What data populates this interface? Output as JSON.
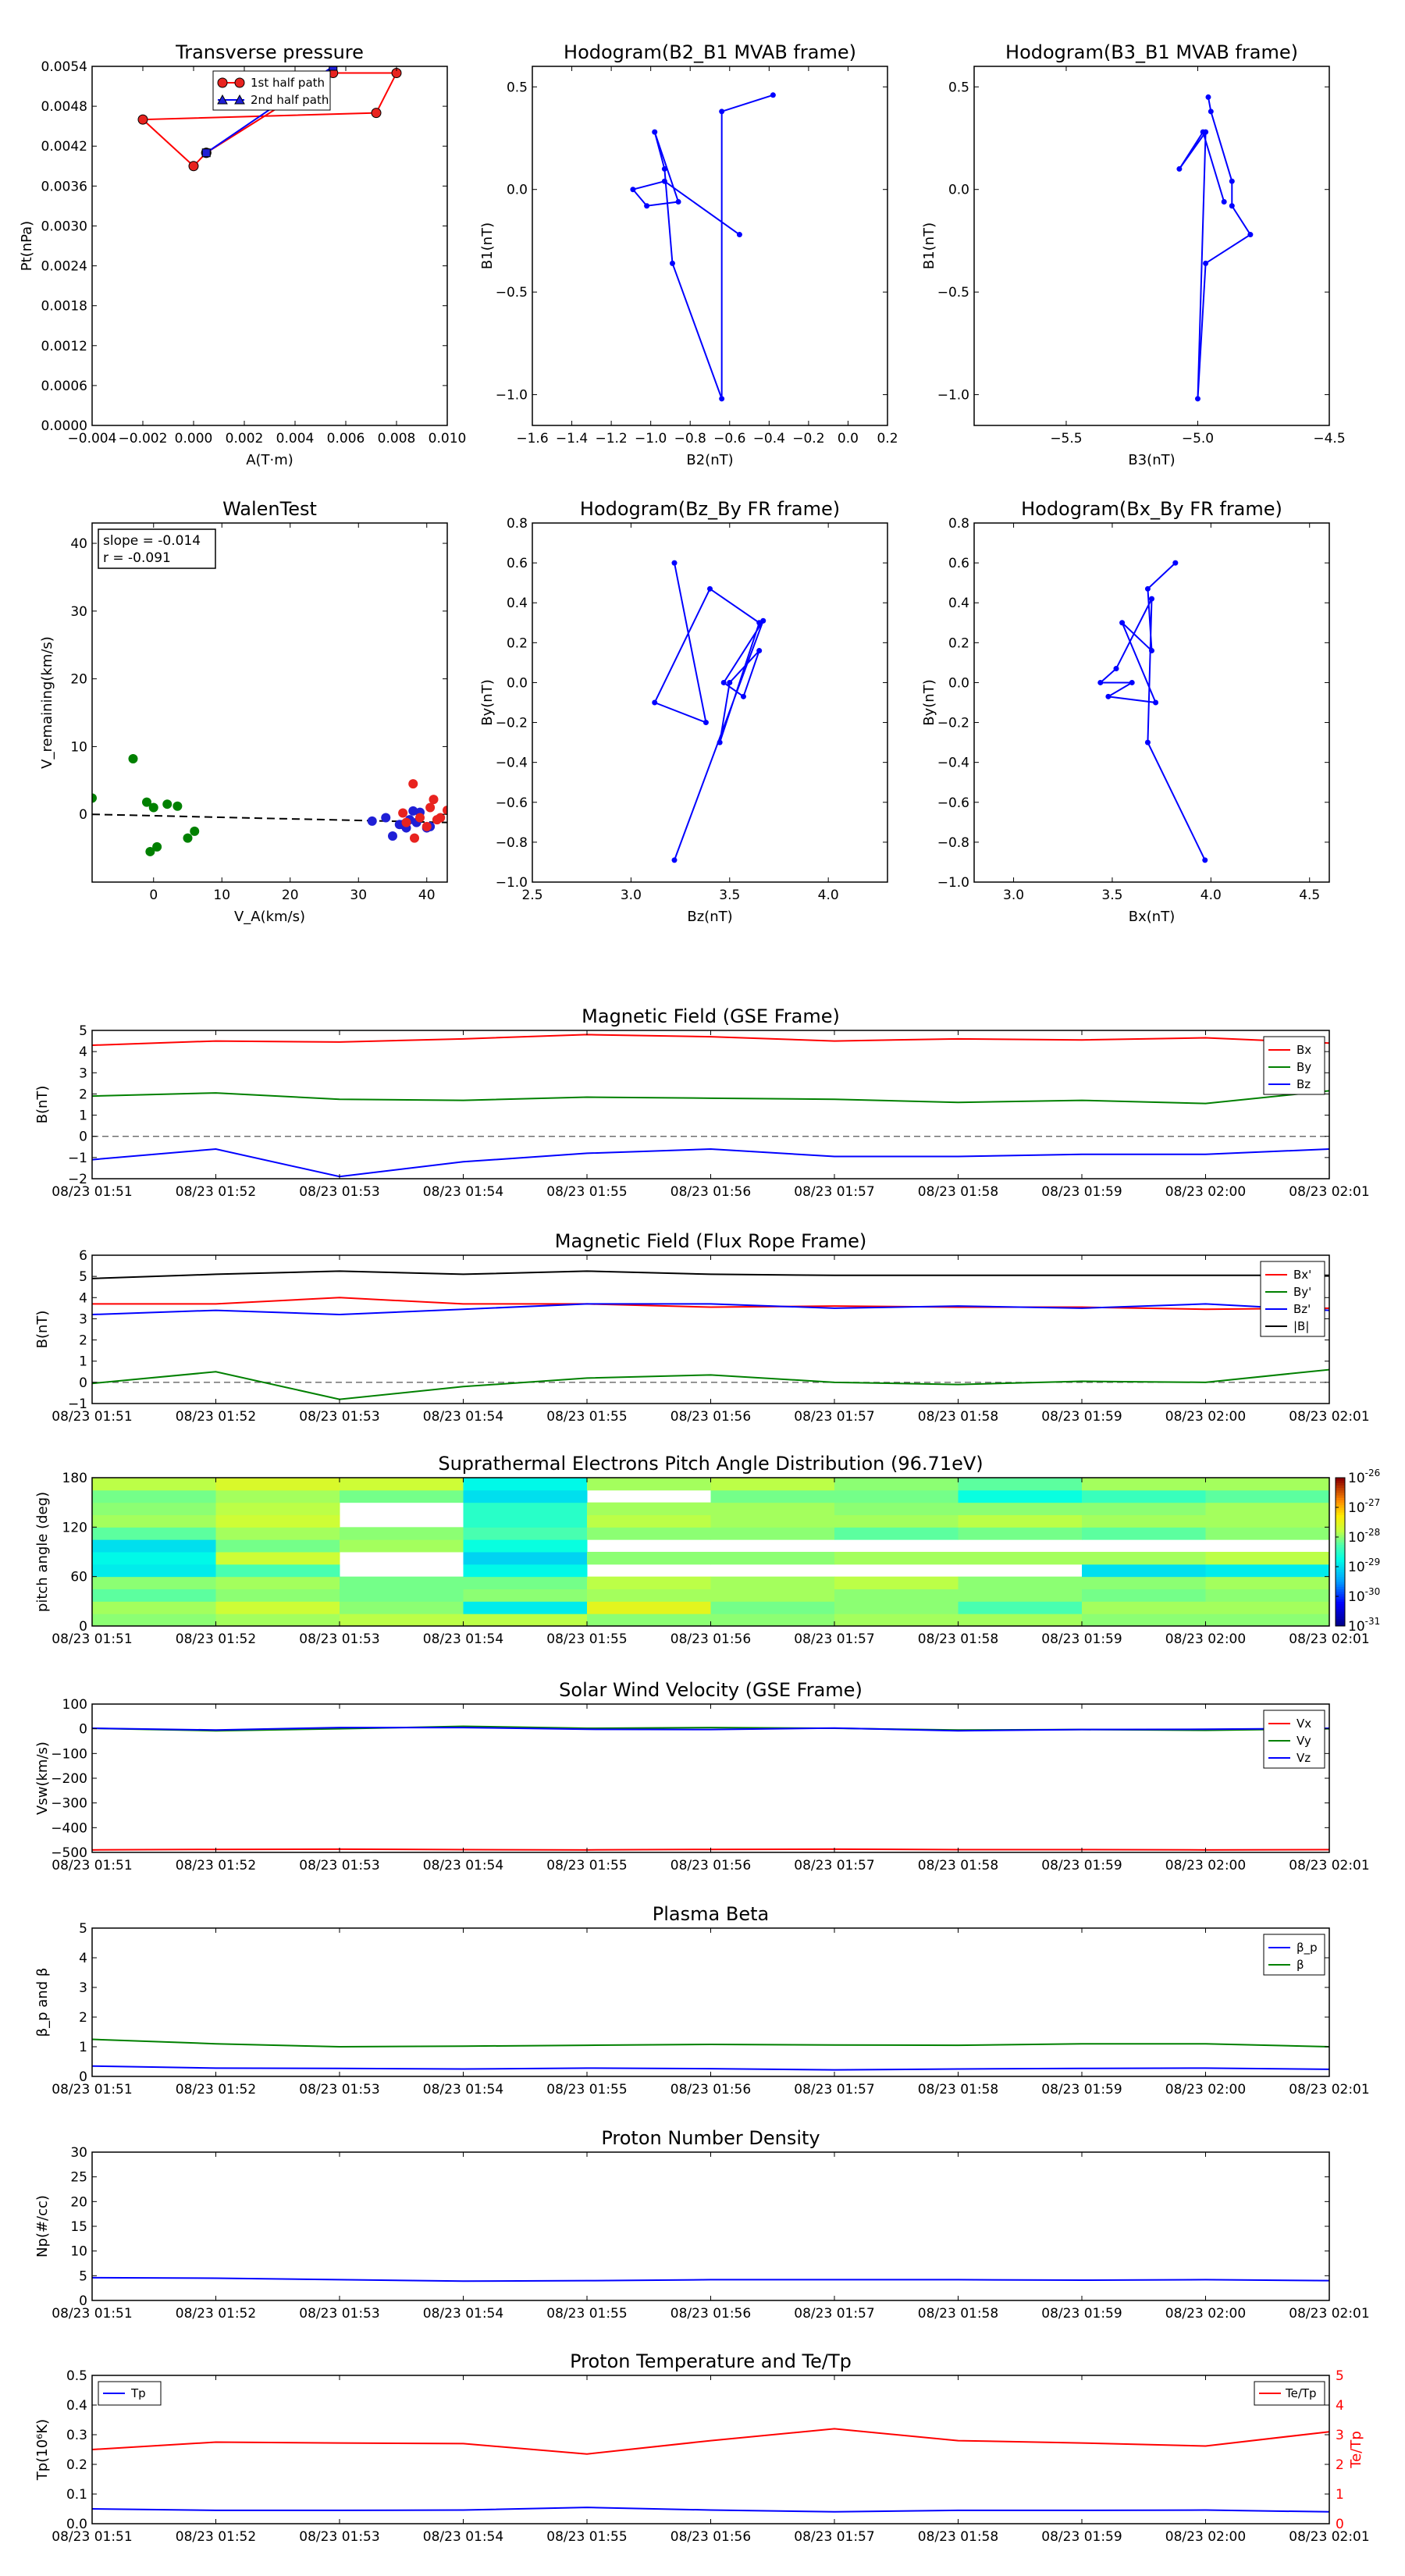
{
  "colors": {
    "red": "#ff0000",
    "green": "#008000",
    "blue": "#0000ff",
    "black": "#000000",
    "marker_red": "#e8231f",
    "marker_blue": "#1f1fd6"
  },
  "time_ticks": [
    "08/23 01:51",
    "08/23 01:52",
    "08/23 01:53",
    "08/23 01:54",
    "08/23 01:55",
    "08/23 01:56",
    "08/23 01:57",
    "08/23 01:58",
    "08/23 01:59",
    "08/23 02:00",
    "08/23 02:01"
  ],
  "chart_data": [
    {
      "type": "line",
      "title": "Transverse pressure",
      "xlabel": "A(T·m)",
      "ylabel": "Pt(nPa)",
      "xlim": [
        -0.004,
        0.01
      ],
      "ylim": [
        0,
        0.0054
      ],
      "xticks": [
        "−0.004",
        "−0.002",
        "0.000",
        "0.002",
        "0.004",
        "0.006",
        "0.008",
        "0.010"
      ],
      "yticks": [
        "0.0000",
        "0.0006",
        "0.0012",
        "0.0018",
        "0.0024",
        "0.0030",
        "0.0036",
        "0.0042",
        "0.0048",
        "0.0054"
      ],
      "legend": [
        "1st half path",
        "2nd half path"
      ],
      "series": [
        {
          "name": "1st half path",
          "x": [
            0.0005,
            0.0,
            -0.002,
            0.0072,
            0.008,
            0.0055,
            0.0005
          ],
          "y": [
            0.0041,
            0.0039,
            0.0046,
            0.0047,
            0.0053,
            0.0053,
            0.0041
          ]
        },
        {
          "name": "2nd half path",
          "x": [
            0.0005,
            0.0055
          ],
          "y": [
            0.0041,
            0.0054
          ]
        }
      ]
    },
    {
      "type": "line",
      "title": "Hodogram(B2_B1 MVAB frame)",
      "xlabel": "B2(nT)",
      "ylabel": "B1(nT)",
      "xlim": [
        -1.6,
        0.2
      ],
      "ylim": [
        -1.15,
        0.6
      ],
      "xticks": [
        "−1.6",
        "−1.4",
        "−1.2",
        "−1.0",
        "−0.8",
        "−0.6",
        "−0.4",
        "−0.2",
        "0.0",
        "0.2"
      ],
      "yticks": [
        "−1.0",
        "−0.5",
        "0.0",
        "0.5"
      ],
      "x": [
        -0.38,
        -0.64,
        -0.64,
        -0.89,
        -0.93,
        -0.98,
        -0.86,
        -1.02,
        -1.09,
        -0.93,
        -0.55
      ],
      "y": [
        0.46,
        0.38,
        -1.02,
        -0.36,
        0.1,
        0.28,
        -0.06,
        -0.08,
        0.0,
        0.04,
        -0.22
      ]
    },
    {
      "type": "line",
      "title": "Hodogram(B3_B1 MVAB frame)",
      "xlabel": "B3(nT)",
      "ylabel": "B1(nT)",
      "xlim": [
        -5.85,
        -4.5
      ],
      "ylim": [
        -1.15,
        0.6
      ],
      "xticks": [
        "−5.5",
        "−5.0",
        "−4.5"
      ],
      "yticks": [
        "−1.0",
        "−0.5",
        "0.0",
        "0.5"
      ],
      "x": [
        -4.96,
        -4.95,
        -4.87,
        -4.87,
        -4.8,
        -4.97,
        -5.0,
        -4.97,
        -5.07,
        -4.98,
        -4.9
      ],
      "y": [
        0.45,
        0.38,
        0.04,
        -0.08,
        -0.22,
        -0.36,
        -1.02,
        0.28,
        0.1,
        0.28,
        -0.06
      ]
    },
    {
      "type": "scatter",
      "title": "WalenTest",
      "xlabel": "V_A(km/s)",
      "ylabel": "V_remaining(km/s)",
      "xlim": [
        -9,
        43
      ],
      "ylim": [
        -10,
        43
      ],
      "xticks": [
        "0",
        "10",
        "20",
        "30",
        "40"
      ],
      "yticks": [
        "0",
        "10",
        "20",
        "30",
        "40"
      ],
      "annotation": [
        "slope = -0.014",
        "r = -0.091"
      ],
      "fit": {
        "x": [
          -9,
          43
        ],
        "y": [
          0.0,
          -1.2
        ]
      },
      "series": [
        {
          "name": "green",
          "x": [
            -9,
            -3,
            -1,
            0,
            2,
            3.5,
            5,
            6,
            -0.5,
            0.5
          ],
          "y": [
            2.4,
            8.2,
            1.8,
            1.0,
            1.5,
            1.2,
            -3.5,
            -2.5,
            -5.5,
            -4.8
          ]
        },
        {
          "name": "blue",
          "x": [
            32,
            34,
            35,
            36,
            37,
            37.5,
            38,
            38.5,
            39,
            40,
            36.5,
            40.5
          ],
          "y": [
            -1.0,
            -0.5,
            -3.2,
            -1.5,
            -2.0,
            -0.8,
            0.5,
            -1.2,
            0.3,
            -2.0,
            -1.5,
            -1.8
          ]
        },
        {
          "name": "red",
          "x": [
            36.5,
            37,
            38,
            38.2,
            39,
            40,
            41,
            42,
            43,
            40.5,
            41.5
          ],
          "y": [
            0.2,
            -1.2,
            4.5,
            -3.5,
            -0.5,
            -1.8,
            2.2,
            -0.5,
            0.6,
            1.0,
            -0.8
          ]
        }
      ]
    },
    {
      "type": "line",
      "title": "Hodogram(Bz_By FR frame)",
      "xlabel": "Bz(nT)",
      "ylabel": "By(nT)",
      "xlim": [
        2.5,
        4.3
      ],
      "ylim": [
        -1.0,
        0.8
      ],
      "xticks": [
        "2.5",
        "3.0",
        "3.5",
        "4.0"
      ],
      "yticks": [
        "−1.0",
        "−0.8",
        "−0.6",
        "−0.4",
        "−0.2",
        "0.0",
        "0.2",
        "0.4",
        "0.6",
        "0.8"
      ],
      "x": [
        3.22,
        3.38,
        3.12,
        3.4,
        3.65,
        3.45,
        3.5,
        3.65,
        3.57,
        3.47,
        3.67,
        3.22
      ],
      "y": [
        0.6,
        -0.2,
        -0.1,
        0.47,
        0.3,
        -0.3,
        0.0,
        0.16,
        -0.07,
        0.0,
        0.31,
        -0.89
      ]
    },
    {
      "type": "line",
      "title": "Hodogram(Bx_By FR frame)",
      "xlabel": "Bx(nT)",
      "ylabel": "By(nT)",
      "xlim": [
        2.8,
        4.6
      ],
      "ylim": [
        -1.0,
        0.8
      ],
      "xticks": [
        "3.0",
        "3.5",
        "4.0",
        "4.5"
      ],
      "yticks": [
        "−1.0",
        "−0.8",
        "−0.6",
        "−0.4",
        "−0.2",
        "0.0",
        "0.2",
        "0.4",
        "0.6",
        "0.8"
      ],
      "x": [
        3.82,
        3.68,
        3.7,
        3.55,
        3.72,
        3.48,
        3.6,
        3.44,
        3.52,
        3.7,
        3.68,
        3.97
      ],
      "y": [
        0.6,
        0.47,
        0.16,
        0.3,
        -0.1,
        -0.07,
        0.0,
        0.0,
        0.07,
        0.42,
        -0.3,
        -0.89
      ]
    },
    {
      "type": "line",
      "title": "Magnetic Field (GSE Frame)",
      "ylabel": "B(nT)",
      "ylim": [
        -2,
        5
      ],
      "yticks": [
        "−2",
        "−1",
        "0",
        "1",
        "2",
        "3",
        "4",
        "5"
      ],
      "legend": [
        "Bx",
        "By",
        "Bz"
      ],
      "zero_line": true,
      "series": [
        {
          "name": "Bx",
          "values": [
            4.3,
            4.5,
            4.45,
            4.6,
            4.8,
            4.7,
            4.5,
            4.6,
            4.55,
            4.65,
            4.4
          ]
        },
        {
          "name": "By",
          "values": [
            1.9,
            2.05,
            1.75,
            1.7,
            1.85,
            1.8,
            1.75,
            1.6,
            1.7,
            1.55,
            2.15
          ]
        },
        {
          "name": "Bz",
          "values": [
            -1.1,
            -0.6,
            -1.9,
            -1.2,
            -0.8,
            -0.6,
            -0.95,
            -0.95,
            -0.85,
            -0.85,
            -0.6
          ]
        }
      ]
    },
    {
      "type": "line",
      "title": "Magnetic Field (Flux Rope Frame)",
      "ylabel": "B(nT)",
      "ylim": [
        -1,
        6
      ],
      "yticks": [
        "−1",
        "0",
        "1",
        "2",
        "3",
        "4",
        "5",
        "6"
      ],
      "legend": [
        "Bx'",
        "By'",
        "Bz'",
        "|B|"
      ],
      "zero_line": true,
      "series": [
        {
          "name": "Bx'",
          "values": [
            3.7,
            3.7,
            4.0,
            3.7,
            3.7,
            3.55,
            3.6,
            3.55,
            3.55,
            3.45,
            3.5
          ]
        },
        {
          "name": "By'",
          "values": [
            -0.05,
            0.5,
            -0.8,
            -0.2,
            0.2,
            0.35,
            0.0,
            -0.1,
            0.05,
            0.0,
            0.6
          ]
        },
        {
          "name": "Bz'",
          "values": [
            3.2,
            3.4,
            3.2,
            3.45,
            3.7,
            3.7,
            3.5,
            3.6,
            3.5,
            3.7,
            3.4
          ]
        },
        {
          "name": "|B|",
          "values": [
            4.9,
            5.1,
            5.25,
            5.1,
            5.25,
            5.1,
            5.05,
            5.05,
            5.05,
            5.05,
            5.05
          ]
        }
      ]
    },
    {
      "type": "heatmap",
      "title": "Suprathermal Electrons Pitch Angle Distribution (96.71eV)",
      "ylabel": "pitch angle (deg)",
      "ylim": [
        0,
        180
      ],
      "yticks": [
        "0",
        "60",
        "120",
        "180"
      ],
      "colorbar": {
        "ticks": [
          "10",
          "10",
          "10",
          "10",
          "10",
          "10"
        ],
        "exps": [
          "-31",
          "-30",
          "-29",
          "-28",
          "-27",
          "-26"
        ]
      },
      "grid": [
        [
          0.6,
          0.62,
          0.64,
          0.64,
          0.6,
          0.6,
          0.62,
          0.62,
          0.6,
          0.6
        ],
        [
          0.62,
          0.66,
          0.6,
          0.42,
          0.7,
          0.58,
          0.6,
          0.54,
          0.62,
          0.62
        ],
        [
          0.56,
          0.6,
          0.58,
          0.6,
          0.62,
          0.62,
          0.6,
          0.6,
          0.58,
          0.6
        ],
        [
          0.6,
          0.62,
          0.58,
          0.58,
          0.64,
          0.62,
          0.64,
          0.6,
          0.6,
          0.62
        ],
        [
          0.42,
          0.54,
          null,
          0.44,
          null,
          null,
          null,
          null,
          0.4,
          0.42
        ],
        [
          0.44,
          0.66,
          null,
          0.38,
          0.6,
          0.6,
          0.62,
          0.62,
          0.62,
          0.64
        ],
        [
          0.4,
          0.58,
          0.62,
          0.46,
          null,
          null,
          null,
          null,
          null,
          null
        ],
        [
          0.56,
          0.62,
          0.6,
          0.54,
          0.6,
          0.6,
          0.56,
          0.58,
          0.56,
          0.6
        ],
        [
          0.62,
          0.66,
          null,
          0.5,
          0.64,
          0.62,
          0.62,
          0.64,
          0.62,
          0.62
        ],
        [
          0.6,
          0.64,
          null,
          0.5,
          0.62,
          0.62,
          0.6,
          0.6,
          0.6,
          0.62
        ],
        [
          0.58,
          0.62,
          0.58,
          0.4,
          null,
          0.58,
          0.58,
          0.46,
          0.52,
          0.56
        ],
        [
          0.64,
          0.68,
          0.66,
          0.44,
          0.62,
          0.64,
          0.6,
          0.56,
          0.62,
          0.62
        ]
      ]
    },
    {
      "type": "line",
      "title": "Solar Wind Velocity (GSE Frame)",
      "ylabel": "Vsw(km/s)",
      "ylim": [
        -500,
        100
      ],
      "yticks": [
        "−500",
        "−400",
        "−300",
        "−200",
        "−100",
        "0",
        "100"
      ],
      "legend": [
        "Vx",
        "Vy",
        "Vz"
      ],
      "series": [
        {
          "name": "Vx",
          "values": [
            -490,
            -488,
            -487,
            -489,
            -490,
            -488,
            -487,
            -489,
            -489,
            -490,
            -489
          ]
        },
        {
          "name": "Vy",
          "values": [
            2,
            -8,
            0,
            10,
            2,
            5,
            2,
            -5,
            -3,
            -6,
            0
          ]
        },
        {
          "name": "Vz",
          "values": [
            2,
            -5,
            5,
            5,
            -2,
            -3,
            3,
            -8,
            -3,
            -2,
            2
          ]
        }
      ]
    },
    {
      "type": "line",
      "title": "Plasma Beta",
      "ylabel": "β_p and β",
      "ylim": [
        0,
        5
      ],
      "yticks": [
        "0",
        "1",
        "2",
        "3",
        "4",
        "5"
      ],
      "legend": [
        "β_p",
        "β"
      ],
      "series": [
        {
          "name": "β_p",
          "values": [
            0.35,
            0.28,
            0.27,
            0.25,
            0.28,
            0.26,
            0.22,
            0.25,
            0.27,
            0.28,
            0.24
          ]
        },
        {
          "name": "β",
          "values": [
            1.25,
            1.1,
            1.0,
            1.02,
            1.05,
            1.08,
            1.06,
            1.05,
            1.1,
            1.1,
            1.0
          ]
        }
      ]
    },
    {
      "type": "line",
      "title": "Proton Number Density",
      "ylabel": "Np(#/cc)",
      "ylim": [
        0,
        30
      ],
      "yticks": [
        "0",
        "5",
        "10",
        "15",
        "20",
        "25",
        "30"
      ],
      "series": [
        {
          "name": "Np",
          "values": [
            4.6,
            4.5,
            4.2,
            3.9,
            4.0,
            4.2,
            4.2,
            4.2,
            4.1,
            4.2,
            4.0
          ]
        }
      ]
    },
    {
      "type": "line",
      "title": "Proton Temperature and Te/Tp",
      "ylabel": "Tp(10⁶K)",
      "ylabel_right": "Te/Tp",
      "ylim": [
        0,
        0.5
      ],
      "ylim_right": [
        0,
        5
      ],
      "yticks": [
        "0.0",
        "0.1",
        "0.2",
        "0.3",
        "0.4",
        "0.5"
      ],
      "yticks_right": [
        "0",
        "1",
        "2",
        "3",
        "4",
        "5"
      ],
      "legend": [
        "Tp",
        "Te/Tp"
      ],
      "series": [
        {
          "name": "Tp",
          "values": [
            0.05,
            0.045,
            0.045,
            0.046,
            0.055,
            0.046,
            0.04,
            0.045,
            0.045,
            0.046,
            0.04
          ]
        },
        {
          "name": "Te/Tp",
          "values": [
            2.5,
            2.75,
            2.72,
            2.7,
            2.35,
            2.8,
            3.2,
            2.8,
            2.72,
            2.62,
            3.1
          ]
        }
      ]
    }
  ]
}
